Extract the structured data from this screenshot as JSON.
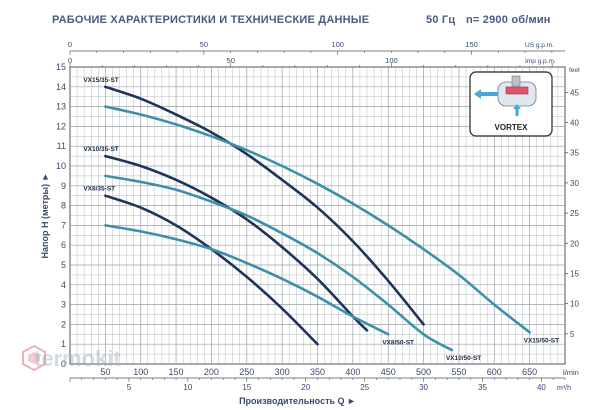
{
  "header": {
    "title": "РАБОЧИЕ ХАРАКТЕРИСТИКИ И ТЕХНИЧЕСКИЕ ДАННЫЕ",
    "frequency": "50 Гц",
    "speed": "n= 2900 об/мин"
  },
  "watermark": {
    "text": "termokit",
    "color": "#e05050"
  },
  "legend_box": {
    "label": "VORTEX",
    "icon": "vortex-pump-icon"
  },
  "colors": {
    "dark": "#1e3558",
    "teal": "#3e8fa8",
    "grid": "#9aa0a8",
    "axis_text": "#3a4a6a"
  },
  "chart_data": {
    "type": "line",
    "xlabel": "Производительность Q ►",
    "ylabel": "Напор H (метры) ►",
    "ylim": [
      0,
      15
    ],
    "y_ticks": [
      0,
      1,
      2,
      3,
      4,
      5,
      6,
      7,
      8,
      9,
      10,
      11,
      12,
      13,
      14,
      15
    ],
    "x_lmin": {
      "unit": "l/min",
      "lim": [
        0,
        700
      ],
      "ticks": [
        50,
        100,
        150,
        200,
        250,
        300,
        350,
        400,
        450,
        500,
        550,
        600,
        650
      ]
    },
    "x_m3h": {
      "unit": "m³/h",
      "lim": [
        0,
        42
      ],
      "ticks": [
        5,
        10,
        15,
        20,
        25,
        30,
        35,
        40
      ]
    },
    "x_usgpm": {
      "unit": "US g.p.m.",
      "lim": [
        0,
        184.9
      ],
      "ticks": [
        0,
        50,
        100,
        150
      ]
    },
    "x_impgpm": {
      "unit": "Imp g.p.m.",
      "lim": [
        0,
        154
      ],
      "ticks": [
        0,
        50,
        100
      ]
    },
    "y_feet": {
      "unit": "feet",
      "lim": [
        0,
        49.2
      ],
      "ticks": [
        5,
        10,
        15,
        20,
        25,
        30,
        35,
        40,
        45
      ]
    },
    "series": [
      {
        "name": "VX15/35-ST",
        "label_pos": "start",
        "color": "dark",
        "x": [
          50,
          100,
          150,
          200,
          250,
          300,
          350,
          400,
          450,
          500
        ],
        "y": [
          14.0,
          13.4,
          12.6,
          11.7,
          10.6,
          9.3,
          7.9,
          6.2,
          4.2,
          2.0
        ]
      },
      {
        "name": "VX15/50-ST",
        "label_pos": "end",
        "color": "teal",
        "x": [
          50,
          100,
          150,
          200,
          250,
          300,
          350,
          400,
          450,
          500,
          550,
          600,
          650
        ],
        "y": [
          13.0,
          12.6,
          12.1,
          11.5,
          10.8,
          10.0,
          9.1,
          8.1,
          7.0,
          5.8,
          4.5,
          3.0,
          1.6
        ]
      },
      {
        "name": "VX10/35-ST",
        "label_pos": "start",
        "color": "dark",
        "x": [
          50,
          100,
          150,
          200,
          250,
          300,
          350,
          400,
          420
        ],
        "y": [
          10.5,
          10.0,
          9.3,
          8.4,
          7.3,
          5.9,
          4.3,
          2.4,
          1.7
        ]
      },
      {
        "name": "VX10/50-ST",
        "label_pos": "end",
        "color": "teal",
        "x": [
          50,
          100,
          150,
          200,
          250,
          300,
          350,
          400,
          450,
          500,
          540
        ],
        "y": [
          9.5,
          9.2,
          8.8,
          8.2,
          7.5,
          6.6,
          5.6,
          4.4,
          3.0,
          1.5,
          0.7
        ]
      },
      {
        "name": "VX8/35-ST",
        "label_pos": "start",
        "color": "dark",
        "x": [
          50,
          100,
          150,
          200,
          250,
          300,
          350
        ],
        "y": [
          8.5,
          7.9,
          7.0,
          5.8,
          4.4,
          2.8,
          1.0
        ]
      },
      {
        "name": "VX8/50-ST",
        "label_pos": "end",
        "color": "teal",
        "x": [
          50,
          100,
          150,
          200,
          250,
          300,
          350,
          400,
          450
        ],
        "y": [
          7.0,
          6.7,
          6.3,
          5.8,
          5.1,
          4.3,
          3.4,
          2.4,
          1.5
        ]
      }
    ]
  }
}
